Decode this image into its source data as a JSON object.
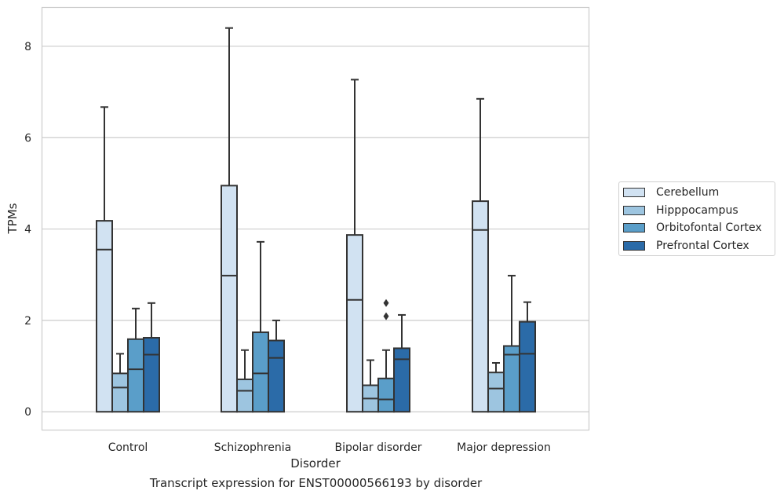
{
  "caption": "Transcript expression for ENST00000566193 by disorder",
  "chart_data": {
    "type": "box",
    "xlabel": "Disorder",
    "ylabel": "TPMs",
    "ylim": [
      -0.4,
      8.85
    ],
    "yticks": [
      0,
      2,
      4,
      6,
      8
    ],
    "grid": "horizontal",
    "legend_position": "right",
    "categories": [
      "Control",
      "Schizophrenia",
      "Bipolar disorder",
      "Major depression"
    ],
    "series": [
      {
        "name": "Cerebellum",
        "color": "#d1e2f2",
        "boxes": [
          {
            "whisker_low": 0,
            "q1": 0,
            "median": 3.55,
            "q3": 4.18,
            "whisker_high": 6.67,
            "outliers": []
          },
          {
            "whisker_low": 0,
            "q1": 0,
            "median": 2.98,
            "q3": 4.95,
            "whisker_high": 8.4,
            "outliers": []
          },
          {
            "whisker_low": 0,
            "q1": 0,
            "median": 2.45,
            "q3": 3.87,
            "whisker_high": 7.27,
            "outliers": []
          },
          {
            "whisker_low": 0,
            "q1": 0,
            "median": 3.98,
            "q3": 4.61,
            "whisker_high": 6.85,
            "outliers": []
          }
        ]
      },
      {
        "name": "Hipppocampus",
        "color": "#9dc5e0",
        "boxes": [
          {
            "whisker_low": 0,
            "q1": 0,
            "median": 0.53,
            "q3": 0.84,
            "whisker_high": 1.27,
            "outliers": []
          },
          {
            "whisker_low": 0,
            "q1": 0,
            "median": 0.46,
            "q3": 0.71,
            "whisker_high": 1.35,
            "outliers": []
          },
          {
            "whisker_low": 0,
            "q1": 0,
            "median": 0.29,
            "q3": 0.58,
            "whisker_high": 1.13,
            "outliers": []
          },
          {
            "whisker_low": 0,
            "q1": 0,
            "median": 0.51,
            "q3": 0.86,
            "whisker_high": 1.07,
            "outliers": []
          }
        ]
      },
      {
        "name": "Orbitofontal Cortex",
        "color": "#5a9ec9",
        "boxes": [
          {
            "whisker_low": 0,
            "q1": 0,
            "median": 0.93,
            "q3": 1.59,
            "whisker_high": 2.26,
            "outliers": []
          },
          {
            "whisker_low": 0,
            "q1": 0,
            "median": 0.84,
            "q3": 1.74,
            "whisker_high": 3.72,
            "outliers": []
          },
          {
            "whisker_low": 0,
            "q1": 0,
            "median": 0.27,
            "q3": 0.73,
            "whisker_high": 1.35,
            "outliers": [
              2.09,
              2.38
            ]
          },
          {
            "whisker_low": 0,
            "q1": 0,
            "median": 1.25,
            "q3": 1.44,
            "whisker_high": 2.98,
            "outliers": []
          }
        ]
      },
      {
        "name": "Prefrontal Cortex",
        "color": "#2b6ba8",
        "boxes": [
          {
            "whisker_low": 0,
            "q1": 0,
            "median": 1.25,
            "q3": 1.62,
            "whisker_high": 2.38,
            "outliers": []
          },
          {
            "whisker_low": 0,
            "q1": 0,
            "median": 1.18,
            "q3": 1.56,
            "whisker_high": 2.0,
            "outliers": []
          },
          {
            "whisker_low": 0,
            "q1": 0,
            "median": 1.15,
            "q3": 1.39,
            "whisker_high": 2.12,
            "outliers": []
          },
          {
            "whisker_low": 0,
            "q1": 0,
            "median": 1.27,
            "q3": 1.97,
            "whisker_high": 2.4,
            "outliers": []
          }
        ]
      }
    ]
  }
}
